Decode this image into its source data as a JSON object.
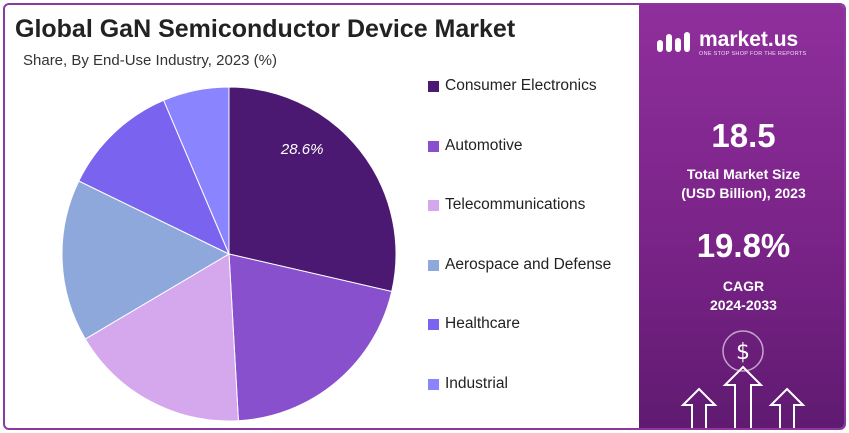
{
  "chart_data": {
    "type": "pie",
    "title": "Global GaN Semiconductor Device Market",
    "subtitle": "Share, By End-Use Industry, 2023 (%)",
    "categories": [
      "Consumer Electronics",
      "Automotive",
      "Telecommunications",
      "Aerospace and Defense",
      "Healthcare",
      "Industrial"
    ],
    "values": [
      28.6,
      20.5,
      17.4,
      15.7,
      11.4,
      6.4
    ],
    "colors": [
      "#4b1872",
      "#8950cd",
      "#d5a8ee",
      "#8ea8dc",
      "#7a63ee",
      "#8a84ff"
    ],
    "data_labels": [
      {
        "text": "28.6%",
        "color": "#ffffff"
      }
    ],
    "legend": "right"
  },
  "panel": {
    "brand_name": "market.us",
    "brand_tagline": "ONE STOP SHOP FOR THE REPORTS",
    "market_size": "18.5",
    "market_size_label_1": "Total Market Size",
    "market_size_label_2": "(USD Billion), 2023",
    "cagr": "19.8%",
    "cagr_label_1": "CAGR",
    "cagr_label_2": "2024-2033",
    "currency_symbol": "$"
  },
  "colors": {
    "panel_bg": "#7a2388",
    "border": "#8a3a9e"
  }
}
